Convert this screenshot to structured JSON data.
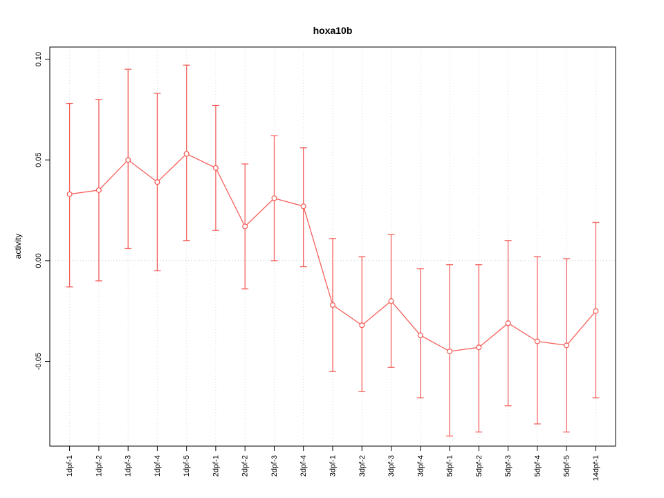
{
  "title": "hoxa10b",
  "chart_data": {
    "type": "line",
    "title": "hoxa10b",
    "xlabel": "",
    "ylabel": "activity",
    "ylim": [
      -0.092,
      0.106
    ],
    "yticks": [
      -0.05,
      0.0,
      0.05,
      0.1
    ],
    "ytick_labels": [
      "-0.05",
      "0.00",
      "0.05",
      "0.10"
    ],
    "grid": "vertical dotted gridline at each category; dotted horizontal line at zero",
    "legend_position": "none",
    "zero_line": true,
    "marker": "open-circle",
    "categories": [
      "1dpf-1",
      "1dpf-2",
      "1dpf-3",
      "1dpf-4",
      "1dpf-5",
      "2dpf-1",
      "2dpf-2",
      "2dpf-3",
      "2dpf-4",
      "3dpf-1",
      "3dpf-2",
      "3dpf-3",
      "3dpf-4",
      "5dpf-1",
      "5dpf-2",
      "5dpf-3",
      "5dpf-4",
      "5dpf-5",
      "14dpf-1"
    ],
    "series": [
      {
        "name": "activity mean with error bars",
        "values": [
          0.033,
          0.035,
          0.05,
          0.039,
          0.053,
          0.046,
          0.017,
          0.031,
          0.027,
          -0.022,
          -0.032,
          -0.02,
          -0.037,
          -0.045,
          -0.043,
          -0.031,
          -0.04,
          -0.042,
          -0.025
        ],
        "upper": [
          0.078,
          0.08,
          0.095,
          0.083,
          0.097,
          0.077,
          0.048,
          0.062,
          0.056,
          0.011,
          0.002,
          0.013,
          -0.004,
          -0.002,
          -0.002,
          0.01,
          0.002,
          0.001,
          0.019
        ],
        "lower": [
          -0.013,
          -0.01,
          0.006,
          -0.005,
          0.01,
          0.015,
          -0.014,
          0.0,
          -0.003,
          -0.055,
          -0.065,
          -0.053,
          -0.068,
          -0.087,
          -0.085,
          -0.072,
          -0.081,
          -0.085,
          -0.068
        ]
      }
    ],
    "colors": {
      "series": "#f4605b",
      "grid": "#d9d9d9",
      "zero_line": "#c8c8c8",
      "axis": "#000000",
      "background": "#ffffff"
    }
  }
}
